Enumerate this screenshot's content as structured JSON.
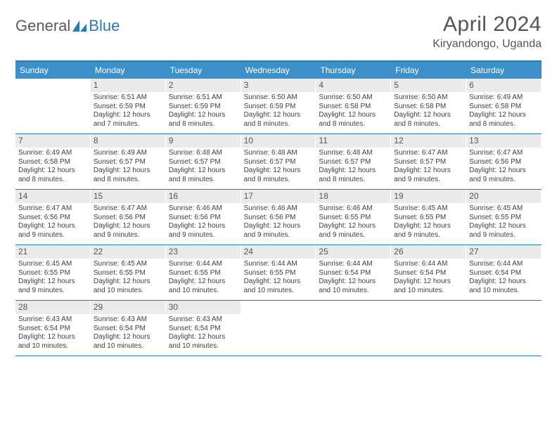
{
  "logo": {
    "text1": "General",
    "text2": "Blue"
  },
  "title": "April 2024",
  "location": "Kiryandongo, Uganda",
  "colors": {
    "header_bar": "#3d8fc7",
    "border": "#2a7ab0",
    "daynum_bg": "#ebebeb",
    "text": "#404040",
    "title_text": "#555555"
  },
  "days_of_week": [
    "Sunday",
    "Monday",
    "Tuesday",
    "Wednesday",
    "Thursday",
    "Friday",
    "Saturday"
  ],
  "weeks": [
    [
      null,
      {
        "n": "1",
        "sr": "Sunrise: 6:51 AM",
        "ss": "Sunset: 6:59 PM",
        "dl": "Daylight: 12 hours and 7 minutes."
      },
      {
        "n": "2",
        "sr": "Sunrise: 6:51 AM",
        "ss": "Sunset: 6:59 PM",
        "dl": "Daylight: 12 hours and 8 minutes."
      },
      {
        "n": "3",
        "sr": "Sunrise: 6:50 AM",
        "ss": "Sunset: 6:59 PM",
        "dl": "Daylight: 12 hours and 8 minutes."
      },
      {
        "n": "4",
        "sr": "Sunrise: 6:50 AM",
        "ss": "Sunset: 6:58 PM",
        "dl": "Daylight: 12 hours and 8 minutes."
      },
      {
        "n": "5",
        "sr": "Sunrise: 6:50 AM",
        "ss": "Sunset: 6:58 PM",
        "dl": "Daylight: 12 hours and 8 minutes."
      },
      {
        "n": "6",
        "sr": "Sunrise: 6:49 AM",
        "ss": "Sunset: 6:58 PM",
        "dl": "Daylight: 12 hours and 8 minutes."
      }
    ],
    [
      {
        "n": "7",
        "sr": "Sunrise: 6:49 AM",
        "ss": "Sunset: 6:58 PM",
        "dl": "Daylight: 12 hours and 8 minutes."
      },
      {
        "n": "8",
        "sr": "Sunrise: 6:49 AM",
        "ss": "Sunset: 6:57 PM",
        "dl": "Daylight: 12 hours and 8 minutes."
      },
      {
        "n": "9",
        "sr": "Sunrise: 6:48 AM",
        "ss": "Sunset: 6:57 PM",
        "dl": "Daylight: 12 hours and 8 minutes."
      },
      {
        "n": "10",
        "sr": "Sunrise: 6:48 AM",
        "ss": "Sunset: 6:57 PM",
        "dl": "Daylight: 12 hours and 8 minutes."
      },
      {
        "n": "11",
        "sr": "Sunrise: 6:48 AM",
        "ss": "Sunset: 6:57 PM",
        "dl": "Daylight: 12 hours and 8 minutes."
      },
      {
        "n": "12",
        "sr": "Sunrise: 6:47 AM",
        "ss": "Sunset: 6:57 PM",
        "dl": "Daylight: 12 hours and 9 minutes."
      },
      {
        "n": "13",
        "sr": "Sunrise: 6:47 AM",
        "ss": "Sunset: 6:56 PM",
        "dl": "Daylight: 12 hours and 9 minutes."
      }
    ],
    [
      {
        "n": "14",
        "sr": "Sunrise: 6:47 AM",
        "ss": "Sunset: 6:56 PM",
        "dl": "Daylight: 12 hours and 9 minutes."
      },
      {
        "n": "15",
        "sr": "Sunrise: 6:47 AM",
        "ss": "Sunset: 6:56 PM",
        "dl": "Daylight: 12 hours and 9 minutes."
      },
      {
        "n": "16",
        "sr": "Sunrise: 6:46 AM",
        "ss": "Sunset: 6:56 PM",
        "dl": "Daylight: 12 hours and 9 minutes."
      },
      {
        "n": "17",
        "sr": "Sunrise: 6:46 AM",
        "ss": "Sunset: 6:56 PM",
        "dl": "Daylight: 12 hours and 9 minutes."
      },
      {
        "n": "18",
        "sr": "Sunrise: 6:46 AM",
        "ss": "Sunset: 6:55 PM",
        "dl": "Daylight: 12 hours and 9 minutes."
      },
      {
        "n": "19",
        "sr": "Sunrise: 6:45 AM",
        "ss": "Sunset: 6:55 PM",
        "dl": "Daylight: 12 hours and 9 minutes."
      },
      {
        "n": "20",
        "sr": "Sunrise: 6:45 AM",
        "ss": "Sunset: 6:55 PM",
        "dl": "Daylight: 12 hours and 9 minutes."
      }
    ],
    [
      {
        "n": "21",
        "sr": "Sunrise: 6:45 AM",
        "ss": "Sunset: 6:55 PM",
        "dl": "Daylight: 12 hours and 9 minutes."
      },
      {
        "n": "22",
        "sr": "Sunrise: 6:45 AM",
        "ss": "Sunset: 6:55 PM",
        "dl": "Daylight: 12 hours and 10 minutes."
      },
      {
        "n": "23",
        "sr": "Sunrise: 6:44 AM",
        "ss": "Sunset: 6:55 PM",
        "dl": "Daylight: 12 hours and 10 minutes."
      },
      {
        "n": "24",
        "sr": "Sunrise: 6:44 AM",
        "ss": "Sunset: 6:55 PM",
        "dl": "Daylight: 12 hours and 10 minutes."
      },
      {
        "n": "25",
        "sr": "Sunrise: 6:44 AM",
        "ss": "Sunset: 6:54 PM",
        "dl": "Daylight: 12 hours and 10 minutes."
      },
      {
        "n": "26",
        "sr": "Sunrise: 6:44 AM",
        "ss": "Sunset: 6:54 PM",
        "dl": "Daylight: 12 hours and 10 minutes."
      },
      {
        "n": "27",
        "sr": "Sunrise: 6:44 AM",
        "ss": "Sunset: 6:54 PM",
        "dl": "Daylight: 12 hours and 10 minutes."
      }
    ],
    [
      {
        "n": "28",
        "sr": "Sunrise: 6:43 AM",
        "ss": "Sunset: 6:54 PM",
        "dl": "Daylight: 12 hours and 10 minutes."
      },
      {
        "n": "29",
        "sr": "Sunrise: 6:43 AM",
        "ss": "Sunset: 6:54 PM",
        "dl": "Daylight: 12 hours and 10 minutes."
      },
      {
        "n": "30",
        "sr": "Sunrise: 6:43 AM",
        "ss": "Sunset: 6:54 PM",
        "dl": "Daylight: 12 hours and 10 minutes."
      },
      null,
      null,
      null,
      null
    ]
  ]
}
